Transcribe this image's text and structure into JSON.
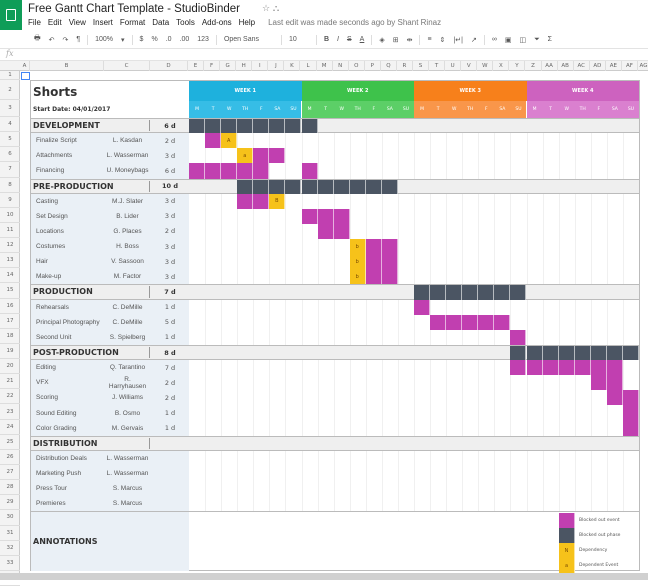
{
  "app": {
    "title": "Free Gantt Chart Template - StudioBinder",
    "menu": [
      "File",
      "Edit",
      "View",
      "Insert",
      "Format",
      "Data",
      "Tools",
      "Add-ons",
      "Help"
    ],
    "last_edit": "Last edit was made seconds ago by Shant Rinaz",
    "toolbar": {
      "zoom": "100%",
      "currency": "$",
      "percent": "%",
      "dec_less": ".0",
      "dec_more": ".00",
      "format": "123",
      "font": "Open Sans",
      "size": "10",
      "bold": "B",
      "italic": "I",
      "strike": "S",
      "text_color": "A"
    },
    "fx": "fx"
  },
  "columns": [
    "A",
    "B",
    "C",
    "D",
    "E",
    "F",
    "G",
    "H",
    "I",
    "J",
    "K",
    "L",
    "M",
    "N",
    "O",
    "P",
    "Q",
    "R",
    "S",
    "T",
    "U",
    "V",
    "W",
    "X",
    "Y",
    "Z",
    "AA",
    "AB",
    "AC",
    "AD",
    "AE",
    "AF",
    "AG"
  ],
  "colors": {
    "event": "#c13fb0",
    "phase": "#4b5563",
    "dependency": "#f6c21a",
    "left_panel": "#eaf0f6",
    "phase_row": "#efefef"
  },
  "sheet": {
    "title": "Shorts",
    "start_date": "Start Date: 04/01/2017",
    "weeks": [
      {
        "label": "WEEK 1",
        "color": "#1eb1dd",
        "light": "#36bde6"
      },
      {
        "label": "WEEK 2",
        "color": "#3ec24b",
        "light": "#5ccf67"
      },
      {
        "label": "WEEK 3",
        "color": "#f7801b",
        "light": "#f9964a"
      },
      {
        "label": "WEEK 4",
        "color": "#cd62bf",
        "light": "#da80cf"
      }
    ],
    "days": [
      "M",
      "T",
      "W",
      "TH",
      "F",
      "SA",
      "SU"
    ],
    "rows": [
      {
        "type": "phase",
        "name": "DEVELOPMENT",
        "duration": "6 d",
        "bar": [
          1,
          8
        ]
      },
      {
        "type": "task",
        "name": "Finalize Script",
        "owner": "L. Kasdan",
        "duration": "2 d",
        "events": [
          [
            2,
            1
          ]
        ],
        "deps": [
          {
            "day": 3,
            "label": "A"
          }
        ]
      },
      {
        "type": "task",
        "name": "Attachments",
        "owner": "L. Wasserman",
        "duration": "3 d",
        "events": [
          [
            5,
            2
          ]
        ],
        "deps": [
          {
            "day": 4,
            "label": "a"
          }
        ]
      },
      {
        "type": "task",
        "name": "Financing",
        "owner": "U. Moneybags",
        "duration": "6 d",
        "events": [
          [
            1,
            5
          ],
          [
            8,
            1
          ]
        ],
        "deps": []
      },
      {
        "type": "phase",
        "name": "PRE-PRODUCTION",
        "duration": "10 d",
        "bar": [
          4,
          10
        ]
      },
      {
        "type": "task",
        "name": "Casting",
        "owner": "M.J. Slater",
        "duration": "3 d",
        "events": [
          [
            4,
            2
          ]
        ],
        "deps": [
          {
            "day": 6,
            "label": "B"
          }
        ]
      },
      {
        "type": "task",
        "name": "Set Design",
        "owner": "B. Lider",
        "duration": "3 d",
        "events": [
          [
            8,
            3
          ]
        ],
        "deps": []
      },
      {
        "type": "task",
        "name": "Locations",
        "owner": "G. Places",
        "duration": "2 d",
        "events": [
          [
            9,
            2
          ]
        ],
        "deps": []
      },
      {
        "type": "task",
        "name": "Costumes",
        "owner": "H. Boss",
        "duration": "3 d",
        "events": [
          [
            12,
            2
          ]
        ],
        "deps": [
          {
            "day": 11,
            "label": "b"
          }
        ]
      },
      {
        "type": "task",
        "name": "Hair",
        "owner": "V. Sassoon",
        "duration": "3 d",
        "events": [
          [
            12,
            2
          ]
        ],
        "deps": [
          {
            "day": 11,
            "label": "b"
          }
        ]
      },
      {
        "type": "task",
        "name": "Make-up",
        "owner": "M. Factor",
        "duration": "3 d",
        "events": [
          [
            12,
            2
          ]
        ],
        "deps": [
          {
            "day": 11,
            "label": "b"
          }
        ]
      },
      {
        "type": "phase",
        "name": "PRODUCTION",
        "duration": "7 d",
        "bar": [
          15,
          7
        ]
      },
      {
        "type": "task",
        "name": "Rehearsals",
        "owner": "C. DeMille",
        "duration": "1 d",
        "events": [
          [
            15,
            1
          ]
        ],
        "deps": []
      },
      {
        "type": "task",
        "name": "Principal Photography",
        "owner": "C. DeMille",
        "duration": "5 d",
        "events": [
          [
            16,
            5
          ]
        ],
        "deps": []
      },
      {
        "type": "task",
        "name": "Second Unit",
        "owner": "S. Spielberg",
        "duration": "1 d",
        "events": [
          [
            21,
            1
          ]
        ],
        "deps": []
      },
      {
        "type": "phase",
        "name": "POST-PRODUCTION",
        "duration": "8 d",
        "bar": [
          21,
          8
        ]
      },
      {
        "type": "task",
        "name": "Editing",
        "owner": "Q. Tarantino",
        "duration": "7 d",
        "events": [
          [
            21,
            7
          ]
        ],
        "deps": []
      },
      {
        "type": "task",
        "name": "VFX",
        "owner": "R. Harryhausen",
        "duration": "2 d",
        "events": [
          [
            26,
            2
          ]
        ],
        "deps": []
      },
      {
        "type": "task",
        "name": "Scoring",
        "owner": "J. Williams",
        "duration": "2 d",
        "events": [
          [
            27,
            2
          ]
        ],
        "deps": []
      },
      {
        "type": "task",
        "name": "Sound Editing",
        "owner": "B. Osmo",
        "duration": "1 d",
        "events": [
          [
            28,
            1
          ]
        ],
        "deps": []
      },
      {
        "type": "task",
        "name": "Color Grading",
        "owner": "M. Gervais",
        "duration": "1 d",
        "events": [
          [
            28,
            1
          ]
        ],
        "deps": []
      },
      {
        "type": "phase",
        "name": "DISTRIBUTION",
        "duration": "",
        "bar": null
      },
      {
        "type": "task",
        "name": "Distribution Deals",
        "owner": "L. Wasserman",
        "duration": "",
        "events": [],
        "deps": []
      },
      {
        "type": "task",
        "name": "Marketing Push",
        "owner": "L. Wasserman",
        "duration": "",
        "events": [],
        "deps": []
      },
      {
        "type": "task",
        "name": "Press Tour",
        "owner": "S. Marcus",
        "duration": "",
        "events": [],
        "deps": []
      },
      {
        "type": "task",
        "name": "Premieres",
        "owner": "S. Marcus",
        "duration": "",
        "events": [],
        "deps": []
      }
    ],
    "annotations": {
      "label": "ANNOTATIONS",
      "legend": [
        {
          "kind": "event",
          "label": "Blocked out event",
          "mark": ""
        },
        {
          "kind": "phase",
          "label": "Blocked out phase",
          "mark": ""
        },
        {
          "kind": "dependency",
          "label": "Dependency",
          "mark": "N"
        },
        {
          "kind": "dependency",
          "label": "Dependent Event",
          "mark": "a"
        }
      ]
    }
  }
}
